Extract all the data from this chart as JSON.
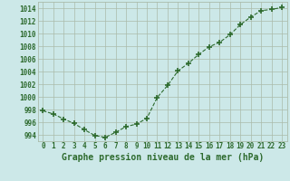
{
  "x": [
    0,
    1,
    2,
    3,
    4,
    5,
    6,
    7,
    8,
    9,
    10,
    11,
    12,
    13,
    14,
    15,
    16,
    17,
    18,
    19,
    20,
    21,
    22,
    23
  ],
  "y": [
    997.8,
    997.3,
    996.5,
    995.8,
    994.8,
    993.9,
    993.6,
    994.4,
    995.3,
    995.7,
    996.6,
    999.9,
    1001.8,
    1004.1,
    1005.3,
    1006.7,
    1007.9,
    1008.6,
    1009.8,
    1011.4,
    1012.6,
    1013.6,
    1013.8,
    1014.1
  ],
  "line_color": "#2d6a2d",
  "marker": "+",
  "marker_size": 4,
  "background_color": "#cce8e8",
  "grid_color": "#aabbaa",
  "xlabel": "Graphe pression niveau de la mer (hPa)",
  "xlabel_fontsize": 7,
  "xlabel_color": "#2d6a2d",
  "ylabel_ticks": [
    994,
    996,
    998,
    1000,
    1002,
    1004,
    1006,
    1008,
    1010,
    1012,
    1014
  ],
  "ylim": [
    993.0,
    1015.0
  ],
  "xlim": [
    -0.5,
    23.5
  ],
  "tick_fontsize": 5.5,
  "tick_color": "#2d6a2d"
}
